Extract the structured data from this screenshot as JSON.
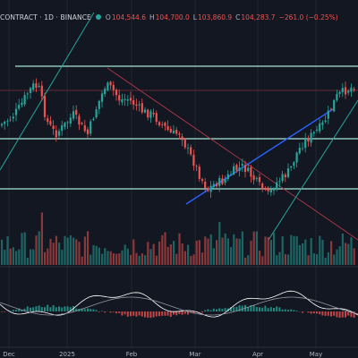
{
  "header": {
    "symbol": "CONTRACT · 1D · BINANCE",
    "o_label": "O",
    "o_value": "104,544.6",
    "h_label": "H",
    "h_value": "104,700.0",
    "l_label": "L",
    "l_value": "103,860.9",
    "c_label": "C",
    "c_value": "104,283.7",
    "change": "−261.0 (−0.25%)"
  },
  "time_axis": [
    "Dec",
    "2025",
    "Feb",
    "Mar",
    "Apr",
    "May"
  ],
  "colors": {
    "background": "#131722",
    "up": "#26a69a",
    "down": "#ef5350",
    "horizontal_lines": "#a8e6d6",
    "uptrend_line": "#2962ff",
    "support_line": "#26a69a",
    "downtrend_line": "#b2384a",
    "macd_line": "#ffffff"
  },
  "chart_data": {
    "type": "candlestick",
    "last_candle": {
      "open": 104544.6,
      "high": 104700.0,
      "low": 103860.9,
      "close": 104283.7
    },
    "last_change": -261.0,
    "last_change_pct": -0.25,
    "x_labels": [
      "Dec",
      "2025",
      "Feb",
      "Mar",
      "Apr",
      "May"
    ],
    "panes": [
      "price",
      "volume",
      "macd"
    ]
  }
}
